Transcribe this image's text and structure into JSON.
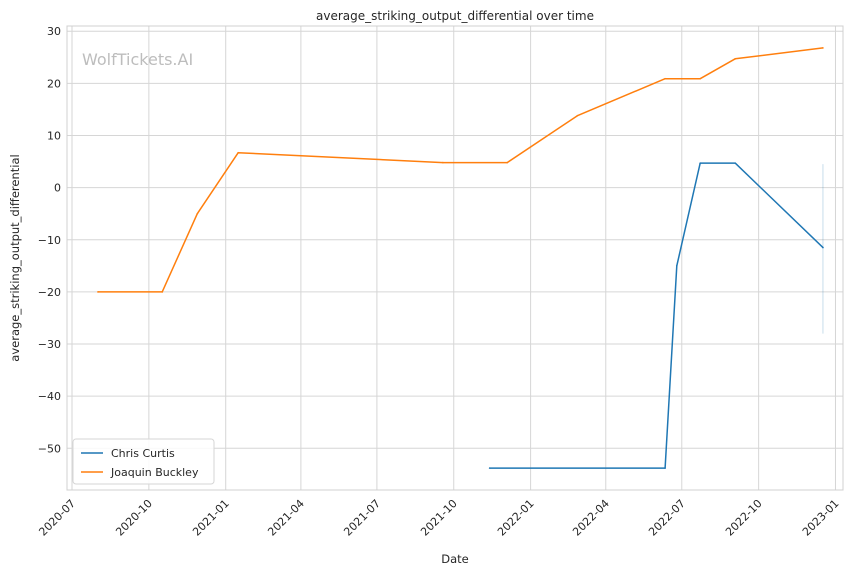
{
  "watermark": "WolfTickets.AI",
  "chart_data": {
    "type": "line",
    "title": "average_striking_output_differential over time",
    "xlabel": "Date",
    "ylabel": "average_striking_output_differential",
    "x_axis_type": "date",
    "xlim": [
      "2020-06-25",
      "2023-01-10"
    ],
    "ylim": [
      -58,
      31
    ],
    "x_ticks": [
      "2020-07",
      "2020-10",
      "2021-01",
      "2021-04",
      "2021-07",
      "2021-10",
      "2022-01",
      "2022-04",
      "2022-07",
      "2022-10",
      "2023-01"
    ],
    "y_ticks": [
      30,
      20,
      10,
      0,
      -10,
      -20,
      -30,
      -40,
      -50
    ],
    "y_tick_labels": [
      "30",
      "20",
      "10",
      "0",
      "−10",
      "−20",
      "−30",
      "−40",
      "−50"
    ],
    "grid": true,
    "legend_position": "lower-left",
    "series": [
      {
        "name": "Chris Curtis",
        "color": "#1f77b4",
        "points": [
          {
            "x": "2021-11-13",
            "y": -53.8
          },
          {
            "x": "2022-06-11",
            "y": -53.8
          },
          {
            "x": "2022-06-25",
            "y": -15
          },
          {
            "x": "2022-07-23",
            "y": 4.7
          },
          {
            "x": "2022-09-03",
            "y": 4.7
          },
          {
            "x": "2022-12-17",
            "y": -11.5
          }
        ],
        "band": {
          "x": "2022-12-17",
          "low": -28,
          "high": 4.5
        }
      },
      {
        "name": "Joaquin Buckley",
        "color": "#ff7f0e",
        "points": [
          {
            "x": "2020-08-01",
            "y": -20
          },
          {
            "x": "2020-10-17",
            "y": -20
          },
          {
            "x": "2020-11-28",
            "y": -5
          },
          {
            "x": "2021-01-16",
            "y": 6.7
          },
          {
            "x": "2021-09-18",
            "y": 4.8
          },
          {
            "x": "2021-12-04",
            "y": 4.8
          },
          {
            "x": "2022-02-26",
            "y": 13.8
          },
          {
            "x": "2022-06-11",
            "y": 20.9
          },
          {
            "x": "2022-07-23",
            "y": 20.9
          },
          {
            "x": "2022-09-03",
            "y": 24.7
          },
          {
            "x": "2022-12-17",
            "y": 26.8
          }
        ]
      }
    ]
  }
}
